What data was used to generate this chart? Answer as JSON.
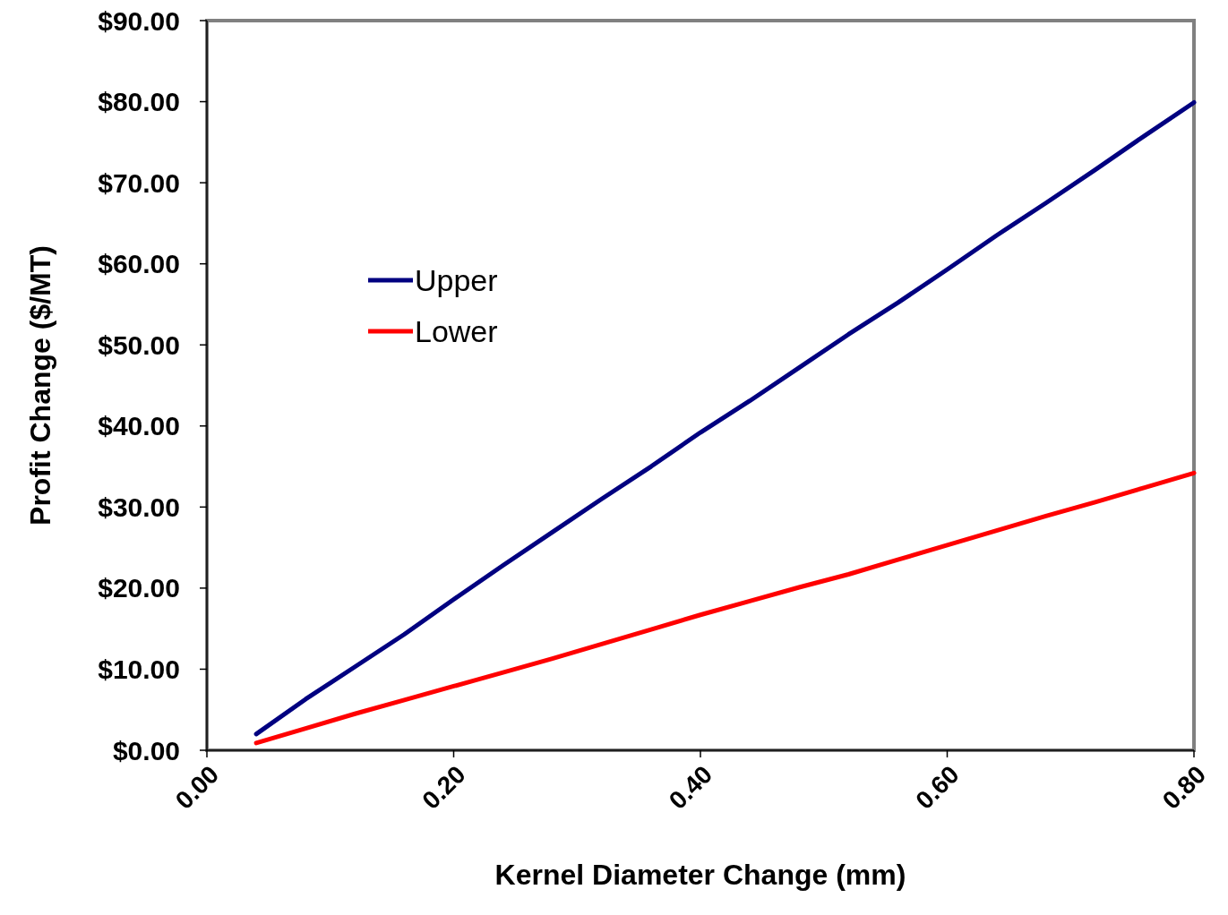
{
  "chart_data": {
    "type": "line",
    "xlabel": "Kernel Diameter Change (mm)",
    "ylabel": "Profit Change ($/MT)",
    "x": [
      0.04,
      0.08,
      0.12,
      0.16,
      0.2,
      0.24,
      0.28,
      0.32,
      0.36,
      0.4,
      0.44,
      0.48,
      0.52,
      0.56,
      0.6,
      0.64,
      0.68,
      0.72,
      0.76,
      0.8
    ],
    "series": [
      {
        "name": "Upper",
        "color": "#000080",
        "values": [
          2.0,
          6.3,
          10.3,
          14.3,
          18.6,
          22.8,
          26.9,
          31.0,
          35.0,
          39.2,
          43.1,
          47.2,
          51.3,
          55.2,
          59.3,
          63.5,
          67.5,
          71.6,
          75.8,
          79.9
        ]
      },
      {
        "name": "Lower",
        "color": "#ff0000",
        "values": [
          0.9,
          2.7,
          4.5,
          6.2,
          7.9,
          9.6,
          11.3,
          13.1,
          14.9,
          16.7,
          18.4,
          20.1,
          21.7,
          23.5,
          25.3,
          27.1,
          28.9,
          30.6,
          32.4,
          34.2
        ]
      }
    ],
    "xlim": [
      0,
      0.8
    ],
    "xticks": [
      {
        "value": 0,
        "label": "0.00"
      },
      {
        "value": 0.2,
        "label": "0.20"
      },
      {
        "value": 0.4,
        "label": "0.40"
      },
      {
        "value": 0.6,
        "label": "0.60"
      },
      {
        "value": 0.8,
        "label": "0.80"
      }
    ],
    "ylim": [
      0,
      90
    ],
    "yticks": [
      {
        "value": 0,
        "label": "$0.00"
      },
      {
        "value": 10,
        "label": "$10.00"
      },
      {
        "value": 20,
        "label": "$20.00"
      },
      {
        "value": 30,
        "label": "$30.00"
      },
      {
        "value": 40,
        "label": "$40.00"
      },
      {
        "value": 50,
        "label": "$50.00"
      },
      {
        "value": 60,
        "label": "$60.00"
      },
      {
        "value": 70,
        "label": "$70.00"
      },
      {
        "value": 80,
        "label": "$80.00"
      },
      {
        "value": 90,
        "label": "$90.00"
      }
    ],
    "grid": false,
    "legend": "left",
    "marker": "none",
    "line_style": "solid"
  }
}
